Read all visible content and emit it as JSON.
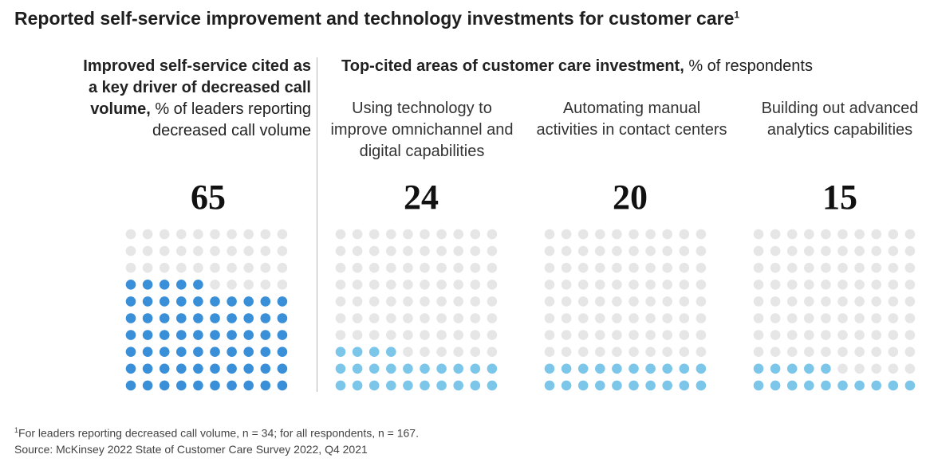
{
  "title": "Reported self-service improvement and technology investments for customer care",
  "title_note_marker": "1",
  "left_header": {
    "bold": "Improved self-service cited as a key driver of decreased call volume,",
    "rest": " % of leaders reporting decreased call volume"
  },
  "right_header": {
    "bold": "Top-cited areas of customer care investment,",
    "rest": " % of respondents"
  },
  "panels": [
    {
      "label": "",
      "value_text": "65"
    },
    {
      "label": "Using technology to improve omnichannel and digital capabilities",
      "value_text": "24"
    },
    {
      "label": "Automating manual activities in contact centers",
      "value_text": "20"
    },
    {
      "label": "Building out advanced analytics capabilities",
      "value_text": "15"
    }
  ],
  "footnote": {
    "marker": "1",
    "note": "For leaders reporting decreased call volume, n = 34; for all respondents, n = 167.",
    "source": "Source: McKinsey 2022 State of Customer Care Survey 2022, Q4 2021"
  },
  "colors": {
    "empty_dot": "#e6e6e6",
    "dark_blue": "#3a8fd9",
    "light_blue": "#7cc6ea"
  },
  "chart_data": {
    "type": "waffle",
    "grid": {
      "rows": 10,
      "cols": 10,
      "fill_from": "bottom"
    },
    "series": [
      {
        "name": "Improved self-service cited as a key driver of decreased call volume",
        "value": 65,
        "color": "#3a8fd9"
      },
      {
        "name": "Using technology to improve omnichannel and digital capabilities",
        "value": 24,
        "color": "#7cc6ea"
      },
      {
        "name": "Automating manual activities in contact centers",
        "value": 20,
        "color": "#7cc6ea"
      },
      {
        "name": "Building out advanced analytics capabilities",
        "value": 15,
        "color": "#7cc6ea"
      }
    ]
  }
}
